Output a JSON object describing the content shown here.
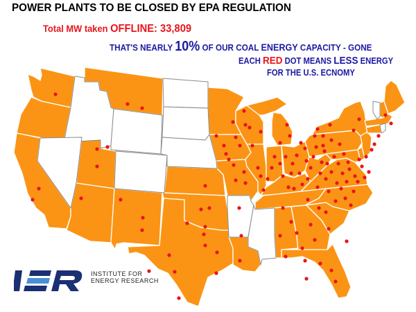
{
  "headline": {
    "title": "POWER PLANTS TO BE CLOSED BY EPA REGULATION",
    "total_prefix": "Total MW taken ",
    "total_offline": "OFFLINE:",
    "total_value": " 33,809",
    "capacity_prefix": "THAT'S NEARLY ",
    "capacity_percent": "10%",
    "capacity_middle": " OF OUR COAL ",
    "capacity_energy": "ENERGY",
    "capacity_suffix": " CAPACITY - GONE",
    "dot_each": "EACH ",
    "dot_red": "RED",
    "dot_middle": " DOT MEANS ",
    "dot_less": "LESS",
    "dot_energy": " ENERGY",
    "dot_line2": "FOR THE U.S. ECNOMY"
  },
  "map": {
    "colors": {
      "affected_state": "#fb9414",
      "unaffected_state": "#ffffff",
      "dot": "#e8141b"
    },
    "affected_states": [
      "WA",
      "OR",
      "CA",
      "MT",
      "UT",
      "AZ",
      "NM",
      "TX",
      "OK",
      "KS",
      "LA",
      "MN",
      "IA",
      "MO",
      "WI",
      "IL",
      "IN",
      "MI",
      "OH",
      "KY",
      "TN",
      "AL",
      "GA",
      "FL",
      "SC",
      "NC",
      "VA",
      "WV",
      "PA",
      "NY",
      "MD",
      "DE",
      "NJ",
      "MA",
      "NH",
      "ME",
      "CT"
    ],
    "unaffected_states": [
      "ID",
      "NV",
      "WY",
      "CO",
      "ND",
      "SD",
      "NE",
      "AR",
      "MS",
      "VT",
      "RI"
    ],
    "dot_count": 130
  },
  "logo": {
    "mark": "IER",
    "line1": "INSTITUTE FOR",
    "line2": "ENERGY RESEARCH",
    "mark_color": "#1b2f73",
    "accent_color": "#4a8fd6"
  }
}
